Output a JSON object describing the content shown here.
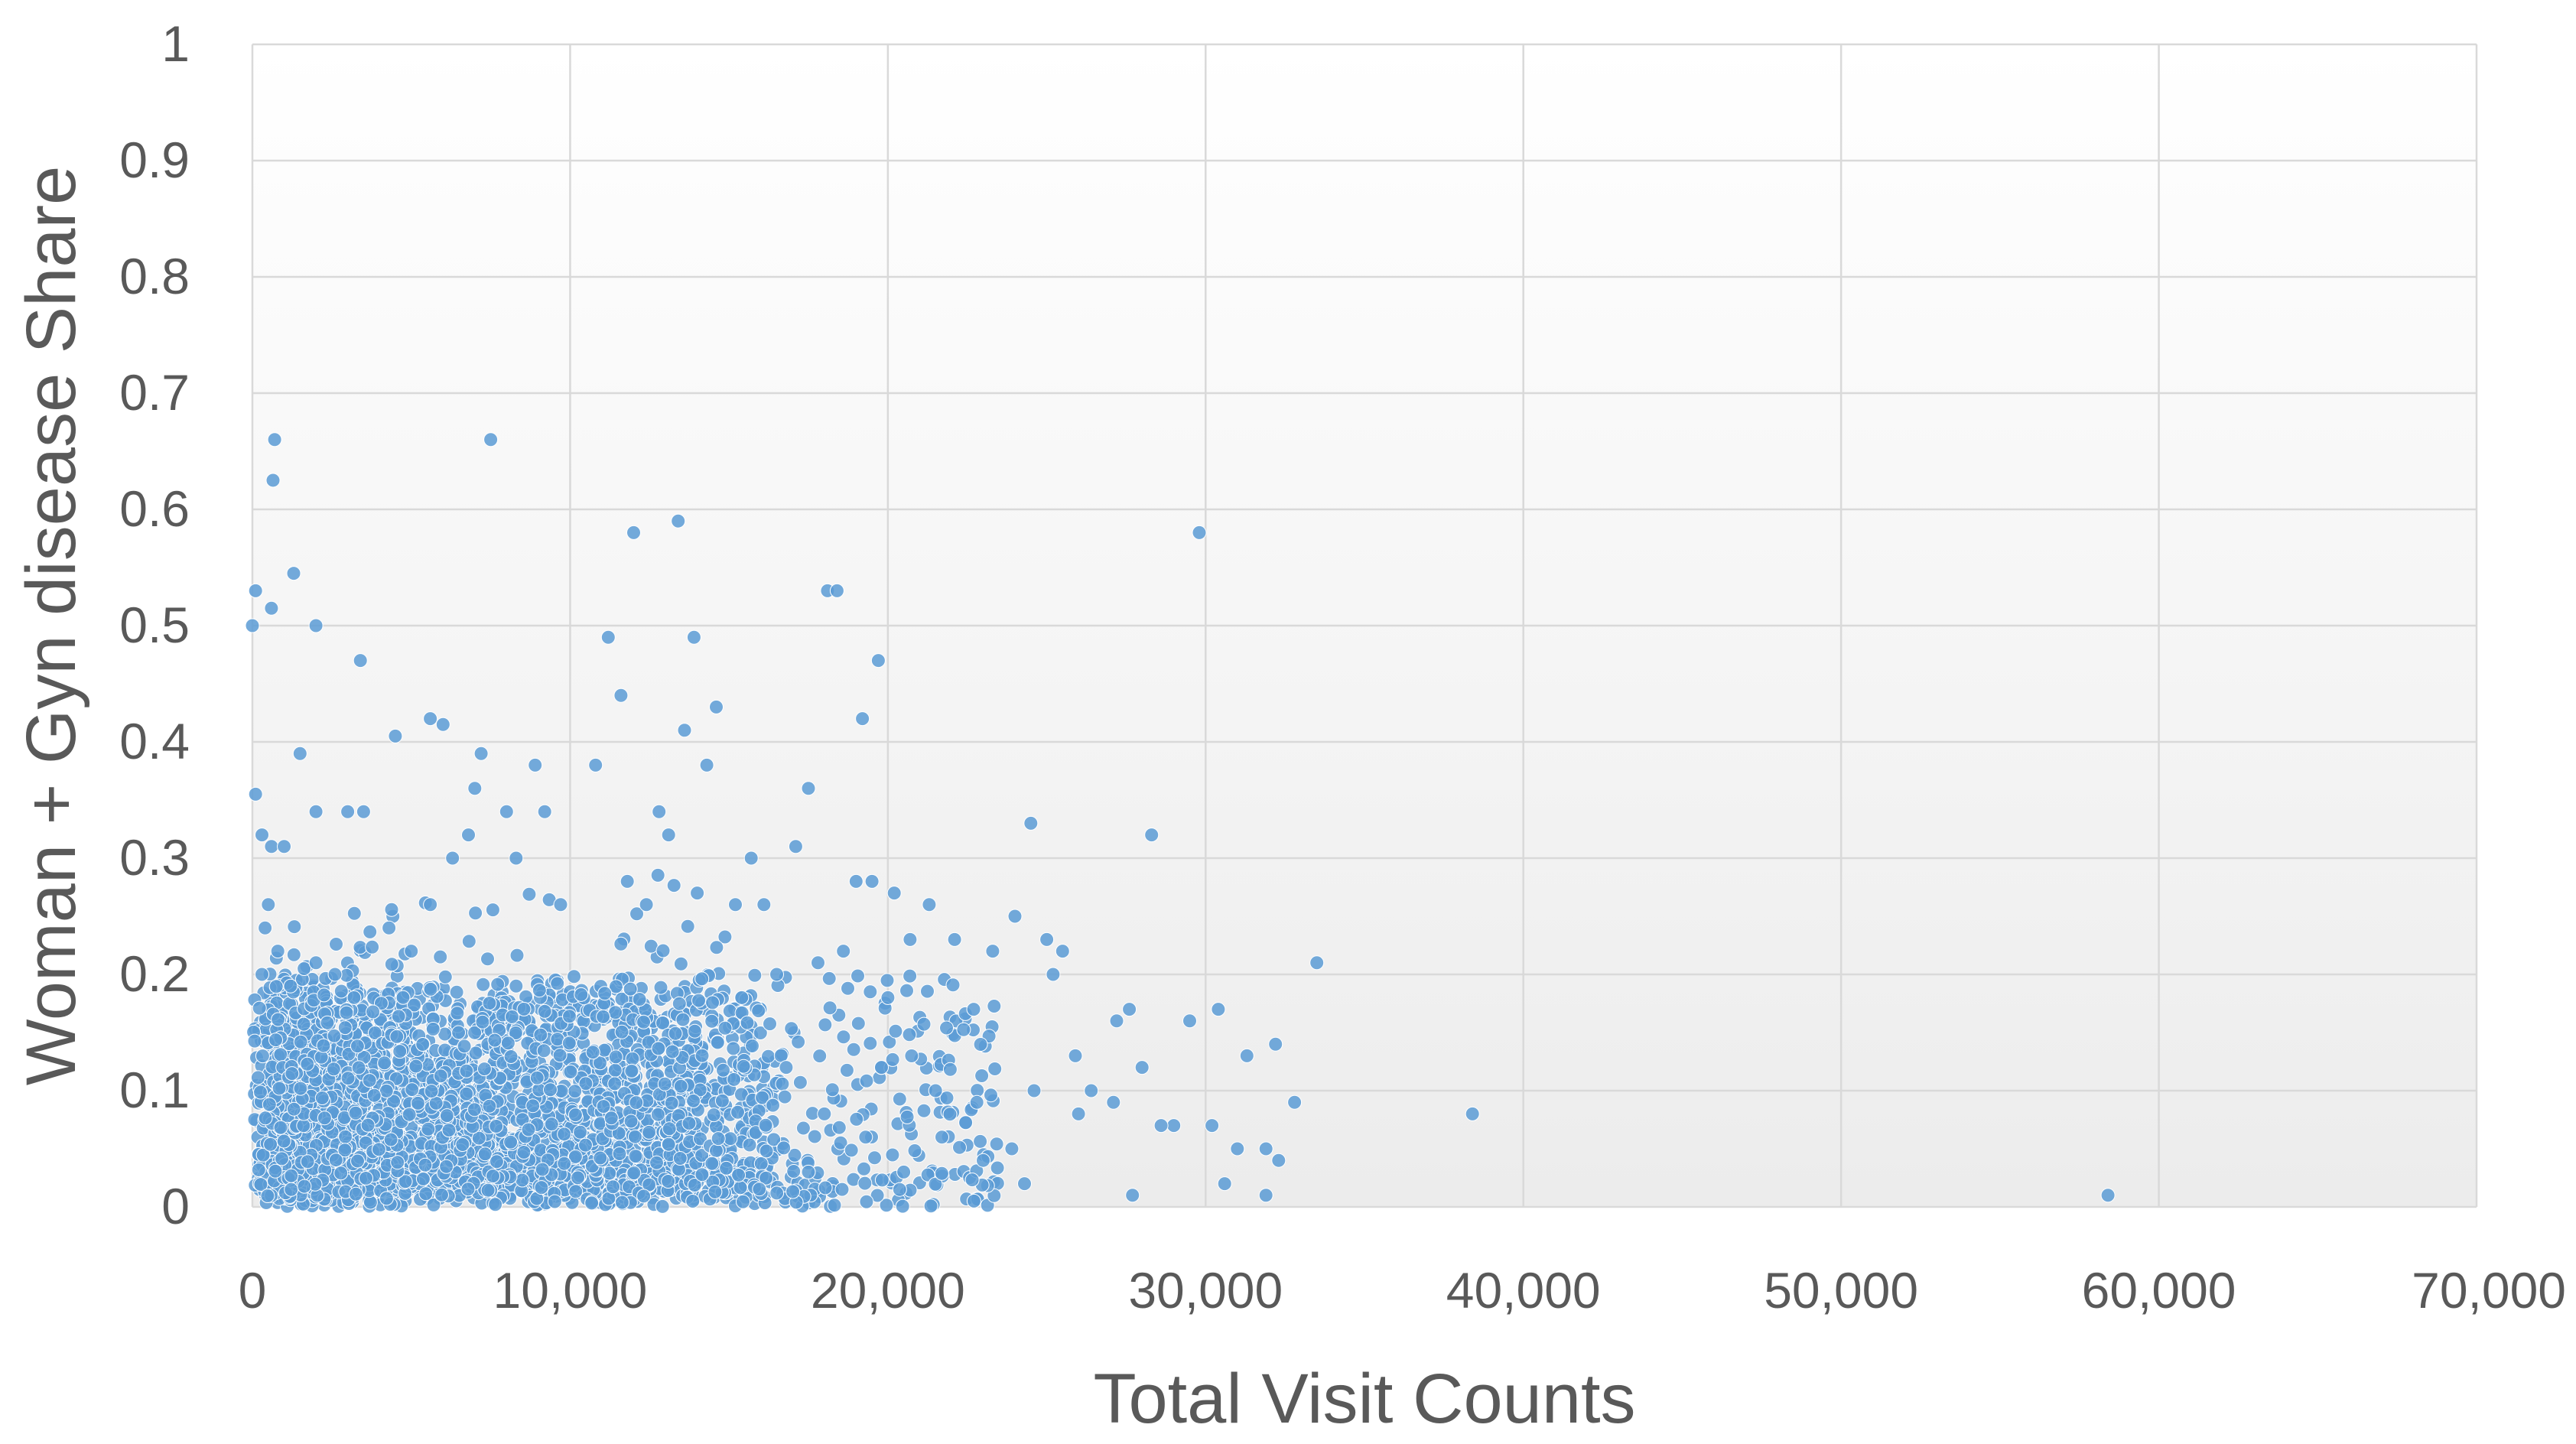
{
  "chart_data": {
    "type": "scatter",
    "title": "",
    "xlabel": "Total Visit Counts",
    "ylabel": "Woman + Gyn disease Share",
    "xlim": [
      0,
      70000
    ],
    "ylim": [
      0,
      1
    ],
    "grid": true,
    "legend": "none",
    "x_ticks": [
      "0",
      "10,000",
      "20,000",
      "30,000",
      "40,000",
      "50,000",
      "60,000",
      "70,000"
    ],
    "y_ticks": [
      "0",
      "0.1",
      "0.2",
      "0.3",
      "0.4",
      "0.5",
      "0.6",
      "0.7",
      "0.8",
      "0.9",
      "1"
    ],
    "colors": {
      "points": "#5b9bd5",
      "grid": "#d9d9d9",
      "text": "#595959",
      "plot_bg_bottom": "#ececec",
      "plot_bg_top": "#ffffff"
    },
    "series": [
      {
        "points": [
          [
            700,
            0.66
          ],
          [
            7500,
            0.66
          ],
          [
            650,
            0.625
          ],
          [
            1300,
            0.545
          ],
          [
            100,
            0.53
          ],
          [
            600,
            0.515
          ],
          [
            0,
            0.5
          ],
          [
            2000,
            0.5
          ],
          [
            3400,
            0.47
          ],
          [
            1500,
            0.39
          ],
          [
            5600,
            0.42
          ],
          [
            6000,
            0.415
          ],
          [
            4500,
            0.405
          ],
          [
            100,
            0.355
          ],
          [
            600,
            0.31
          ],
          [
            300,
            0.32
          ],
          [
            1000,
            0.31
          ],
          [
            2000,
            0.34
          ],
          [
            3000,
            0.34
          ],
          [
            3500,
            0.34
          ],
          [
            500,
            0.26
          ],
          [
            400,
            0.24
          ],
          [
            800,
            0.22
          ],
          [
            300,
            0.2
          ],
          [
            1200,
            0.19
          ],
          [
            2000,
            0.21
          ],
          [
            2600,
            0.2
          ],
          [
            3200,
            0.18
          ],
          [
            4300,
            0.24
          ],
          [
            5000,
            0.22
          ],
          [
            5600,
            0.26
          ],
          [
            6300,
            0.3
          ],
          [
            7000,
            0.36
          ],
          [
            7200,
            0.39
          ],
          [
            6800,
            0.32
          ],
          [
            8000,
            0.34
          ],
          [
            8300,
            0.3
          ],
          [
            8900,
            0.38
          ],
          [
            9200,
            0.34
          ],
          [
            9700,
            0.26
          ],
          [
            10800,
            0.38
          ],
          [
            11200,
            0.49
          ],
          [
            11600,
            0.44
          ],
          [
            12000,
            0.58
          ],
          [
            13400,
            0.59
          ],
          [
            13900,
            0.49
          ],
          [
            14300,
            0.38
          ],
          [
            14600,
            0.43
          ],
          [
            13600,
            0.41
          ],
          [
            12800,
            0.34
          ],
          [
            13100,
            0.32
          ],
          [
            11800,
            0.28
          ],
          [
            12400,
            0.26
          ],
          [
            14000,
            0.27
          ],
          [
            15200,
            0.26
          ],
          [
            15700,
            0.3
          ],
          [
            16100,
            0.26
          ],
          [
            17100,
            0.31
          ],
          [
            17500,
            0.36
          ],
          [
            18100,
            0.53
          ],
          [
            18400,
            0.53
          ],
          [
            19200,
            0.42
          ],
          [
            19700,
            0.47
          ],
          [
            19000,
            0.28
          ],
          [
            19500,
            0.28
          ],
          [
            20200,
            0.27
          ],
          [
            20700,
            0.23
          ],
          [
            21300,
            0.26
          ],
          [
            22100,
            0.23
          ],
          [
            22700,
            0.17
          ],
          [
            23300,
            0.22
          ],
          [
            24000,
            0.25
          ],
          [
            24500,
            0.33
          ],
          [
            25000,
            0.23
          ],
          [
            25200,
            0.2
          ],
          [
            25500,
            0.22
          ],
          [
            25900,
            0.13
          ],
          [
            26400,
            0.1
          ],
          [
            27200,
            0.16
          ],
          [
            27600,
            0.17
          ],
          [
            28000,
            0.12
          ],
          [
            28300,
            0.32
          ],
          [
            29000,
            0.07
          ],
          [
            29500,
            0.16
          ],
          [
            29800,
            0.58
          ],
          [
            30200,
            0.07
          ],
          [
            30400,
            0.17
          ],
          [
            30600,
            0.02
          ],
          [
            31000,
            0.05
          ],
          [
            31300,
            0.13
          ],
          [
            31900,
            0.05
          ],
          [
            32200,
            0.14
          ],
          [
            32300,
            0.04
          ],
          [
            32800,
            0.09
          ],
          [
            33500,
            0.21
          ],
          [
            38400,
            0.08
          ],
          [
            58400,
            0.01
          ],
          [
            27700,
            0.01
          ],
          [
            31900,
            0.01
          ],
          [
            24600,
            0.1
          ],
          [
            23900,
            0.05
          ],
          [
            22800,
            0.09
          ],
          [
            21500,
            0.1
          ],
          [
            20000,
            0.18
          ],
          [
            18600,
            0.22
          ],
          [
            17800,
            0.21
          ],
          [
            16500,
            0.2
          ],
          [
            15400,
            0.18
          ],
          [
            16800,
            0.12
          ],
          [
            18000,
            0.08
          ],
          [
            19300,
            0.06
          ],
          [
            20500,
            0.03
          ],
          [
            21700,
            0.06
          ],
          [
            23000,
            0.04
          ],
          [
            24300,
            0.02
          ],
          [
            26000,
            0.08
          ],
          [
            27100,
            0.09
          ],
          [
            28600,
            0.07
          ],
          [
            17500,
            0.03
          ],
          [
            19800,
            0.12
          ]
        ]
      }
    ]
  }
}
